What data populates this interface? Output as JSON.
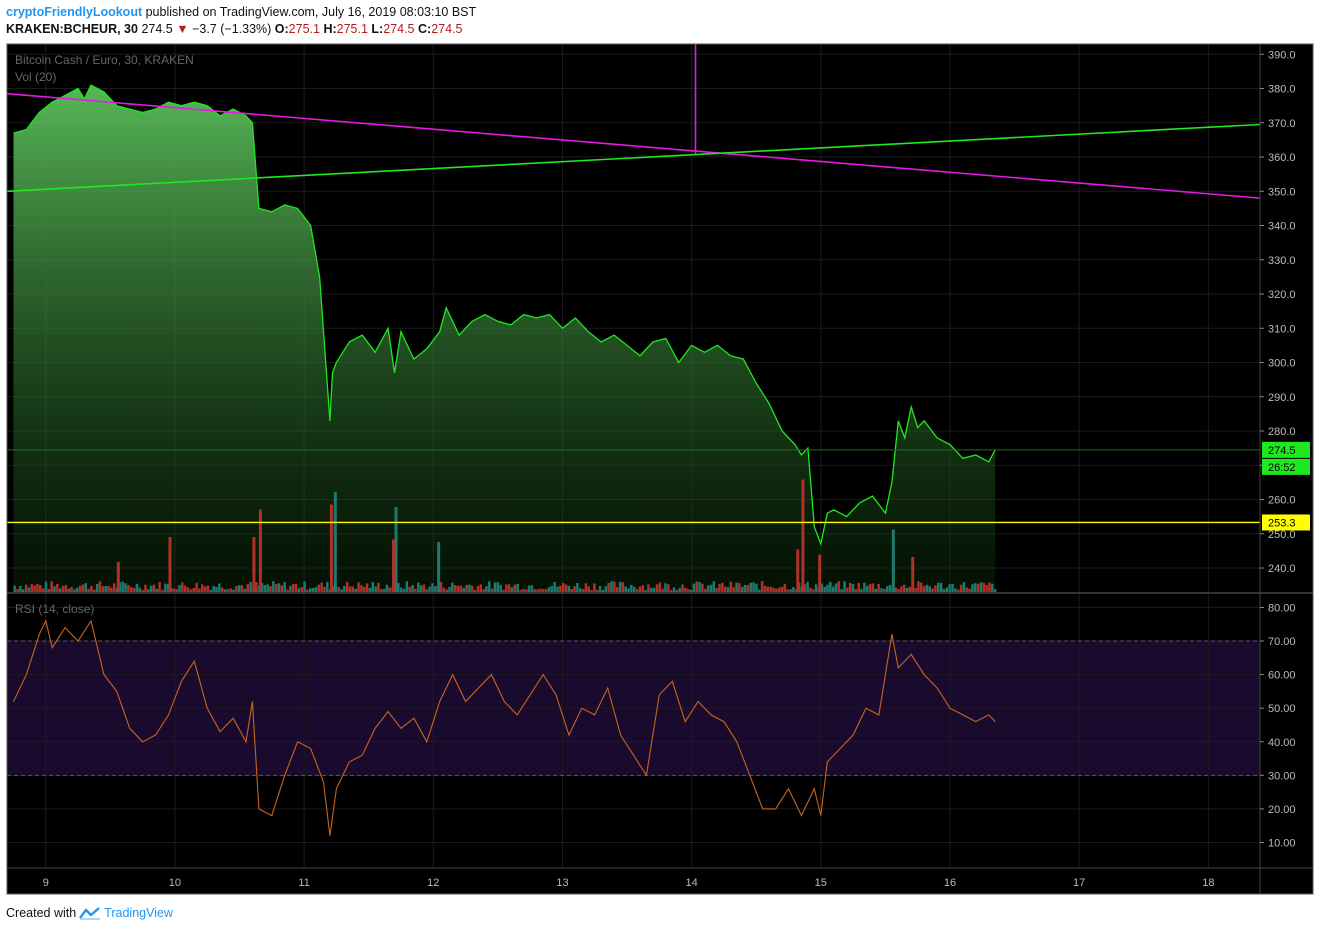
{
  "header": {
    "author": "cryptoFriendlyLookout",
    "published_text": "published on TradingView.com, July 16, 2019 08:03:10 BST",
    "symbol": "KRAKEN:BCHEUR, 30",
    "last": "274.5",
    "change": "−3.7 (−1.33%)",
    "o_label": "O:",
    "o": "275.1",
    "h_label": "H:",
    "h": "275.1",
    "l_label": "L:",
    "l": "274.5",
    "c_label": "C:",
    "c": "274.5"
  },
  "footer": {
    "created_with": "Created with",
    "brand": "TradingView"
  },
  "colors": {
    "background": "#000000",
    "price_line": "#1ee81e",
    "trend_magenta": "#e619e6",
    "support_yellow": "#ffff00",
    "vol_up": "#1e7a6e",
    "vol_down": "#b0302a",
    "rsi_line": "#c8641e",
    "rsi_band": "#1a0a2e"
  },
  "chart_data": [
    {
      "type": "area",
      "title": "Bitcoin Cash / Euro, 30, KRAKEN",
      "overlay": "Vol (20)",
      "x_ticks": [
        "9",
        "10",
        "11",
        "12",
        "13",
        "14",
        "15",
        "16",
        "17",
        "18"
      ],
      "y_ticks": [
        "240.0",
        "250.0",
        "260.0",
        "270.0",
        "280.0",
        "290.0",
        "300.0",
        "310.0",
        "320.0",
        "330.0",
        "340.0",
        "350.0",
        "360.0",
        "370.0",
        "380.0",
        "390.0"
      ],
      "ylim": [
        233,
        393
      ],
      "xlim": [
        8.7,
        18.4
      ],
      "x": [
        8.75,
        8.85,
        8.95,
        9.05,
        9.15,
        9.25,
        9.3,
        9.35,
        9.45,
        9.55,
        9.65,
        9.75,
        9.85,
        9.95,
        10.05,
        10.15,
        10.25,
        10.35,
        10.45,
        10.55,
        10.6,
        10.63,
        10.65,
        10.75,
        10.85,
        10.95,
        11.05,
        11.12,
        11.2,
        11.22,
        11.25,
        11.35,
        11.45,
        11.55,
        11.65,
        11.7,
        11.75,
        11.85,
        11.95,
        12.05,
        12.1,
        12.2,
        12.3,
        12.4,
        12.5,
        12.6,
        12.7,
        12.8,
        12.9,
        13.0,
        13.1,
        13.2,
        13.3,
        13.4,
        13.5,
        13.6,
        13.7,
        13.8,
        13.9,
        14.0,
        14.1,
        14.2,
        14.3,
        14.4,
        14.5,
        14.6,
        14.7,
        14.8,
        14.85,
        14.9,
        14.95,
        15.0,
        15.05,
        15.1,
        15.2,
        15.3,
        15.4,
        15.5,
        15.55,
        15.6,
        15.65,
        15.7,
        15.75,
        15.8,
        15.9,
        16.0,
        16.1,
        16.2,
        16.3,
        16.35
      ],
      "values": [
        367,
        368,
        373,
        376,
        378,
        380,
        377,
        381,
        379,
        375,
        374,
        373,
        374,
        376,
        375,
        376,
        375,
        372,
        374,
        372,
        370,
        355,
        345,
        344,
        346,
        345,
        340,
        325,
        283,
        297,
        300,
        306,
        308,
        303,
        310,
        297,
        309,
        301,
        304,
        309,
        316,
        308,
        312,
        314,
        312,
        311,
        314,
        313,
        314,
        310,
        313,
        309,
        306,
        308,
        305,
        302,
        306,
        307,
        300,
        305,
        303,
        305,
        302,
        301,
        294,
        288,
        280,
        276,
        273,
        275,
        252,
        247,
        256,
        257,
        255,
        259,
        261,
        256,
        265,
        283,
        278,
        287,
        281,
        283,
        278,
        276,
        272,
        273,
        271,
        274.5
      ],
      "last_value": "274.5",
      "countdown": "26:52",
      "support_level": "253.3",
      "lines": [
        {
          "name": "descending-trend",
          "from": [
            8.7,
            378.5
          ],
          "to": [
            18.4,
            348
          ]
        },
        {
          "name": "ascending-trend",
          "from": [
            8.7,
            350
          ],
          "to": [
            18.4,
            369.5
          ]
        },
        {
          "name": "vertical-marker",
          "from": [
            14.03,
            393
          ],
          "to": [
            14.03,
            361
          ]
        }
      ],
      "volume_spikes": [
        {
          "x": 10.65,
          "h": 33,
          "color": "down"
        },
        {
          "x": 10.6,
          "h": 22,
          "color": "down"
        },
        {
          "x": 11.2,
          "h": 35,
          "color": "down"
        },
        {
          "x": 11.23,
          "h": 40,
          "color": "up"
        },
        {
          "x": 11.7,
          "h": 34,
          "color": "up"
        },
        {
          "x": 11.68,
          "h": 21,
          "color": "down"
        },
        {
          "x": 12.03,
          "h": 20,
          "color": "up"
        },
        {
          "x": 14.85,
          "h": 45,
          "color": "down"
        },
        {
          "x": 14.81,
          "h": 17,
          "color": "down"
        },
        {
          "x": 14.98,
          "h": 15,
          "color": "down"
        },
        {
          "x": 15.55,
          "h": 25,
          "color": "up"
        },
        {
          "x": 15.7,
          "h": 14,
          "color": "down"
        },
        {
          "x": 9.95,
          "h": 22,
          "color": "down"
        },
        {
          "x": 9.55,
          "h": 12,
          "color": "down"
        }
      ]
    },
    {
      "type": "line",
      "title": "RSI (14, close)",
      "y_ticks": [
        "10.00",
        "20.00",
        "30.00",
        "40.00",
        "50.00",
        "60.00",
        "70.00",
        "80.00"
      ],
      "ylim": [
        3,
        84
      ],
      "band": [
        30,
        70
      ],
      "x": [
        8.75,
        8.85,
        8.95,
        9.0,
        9.05,
        9.15,
        9.25,
        9.35,
        9.45,
        9.55,
        9.65,
        9.75,
        9.85,
        9.95,
        10.05,
        10.15,
        10.25,
        10.35,
        10.45,
        10.55,
        10.6,
        10.65,
        10.75,
        10.85,
        10.95,
        11.05,
        11.15,
        11.2,
        11.25,
        11.35,
        11.45,
        11.55,
        11.65,
        11.75,
        11.85,
        11.95,
        12.05,
        12.15,
        12.25,
        12.35,
        12.45,
        12.55,
        12.65,
        12.75,
        12.85,
        12.95,
        13.05,
        13.15,
        13.25,
        13.35,
        13.45,
        13.55,
        13.65,
        13.75,
        13.85,
        13.95,
        14.05,
        14.15,
        14.25,
        14.35,
        14.45,
        14.55,
        14.65,
        14.75,
        14.85,
        14.95,
        15.0,
        15.05,
        15.15,
        15.25,
        15.35,
        15.45,
        15.55,
        15.6,
        15.7,
        15.8,
        15.9,
        16.0,
        16.1,
        16.2,
        16.3,
        16.35
      ],
      "values": [
        52,
        60,
        72,
        76,
        68,
        74,
        70,
        76,
        60,
        55,
        44,
        40,
        42,
        48,
        58,
        64,
        50,
        43,
        47,
        40,
        52,
        20,
        18,
        30,
        40,
        38,
        28,
        12,
        26,
        34,
        36,
        44,
        49,
        44,
        47,
        40,
        52,
        60,
        52,
        56,
        60,
        52,
        48,
        54,
        60,
        54,
        42,
        50,
        48,
        56,
        42,
        36,
        30,
        54,
        58,
        46,
        52,
        48,
        46,
        40,
        30,
        20,
        20,
        26,
        18,
        26,
        18,
        34,
        38,
        42,
        50,
        48,
        72,
        62,
        66,
        60,
        56,
        50,
        48,
        46,
        48,
        46
      ]
    }
  ]
}
